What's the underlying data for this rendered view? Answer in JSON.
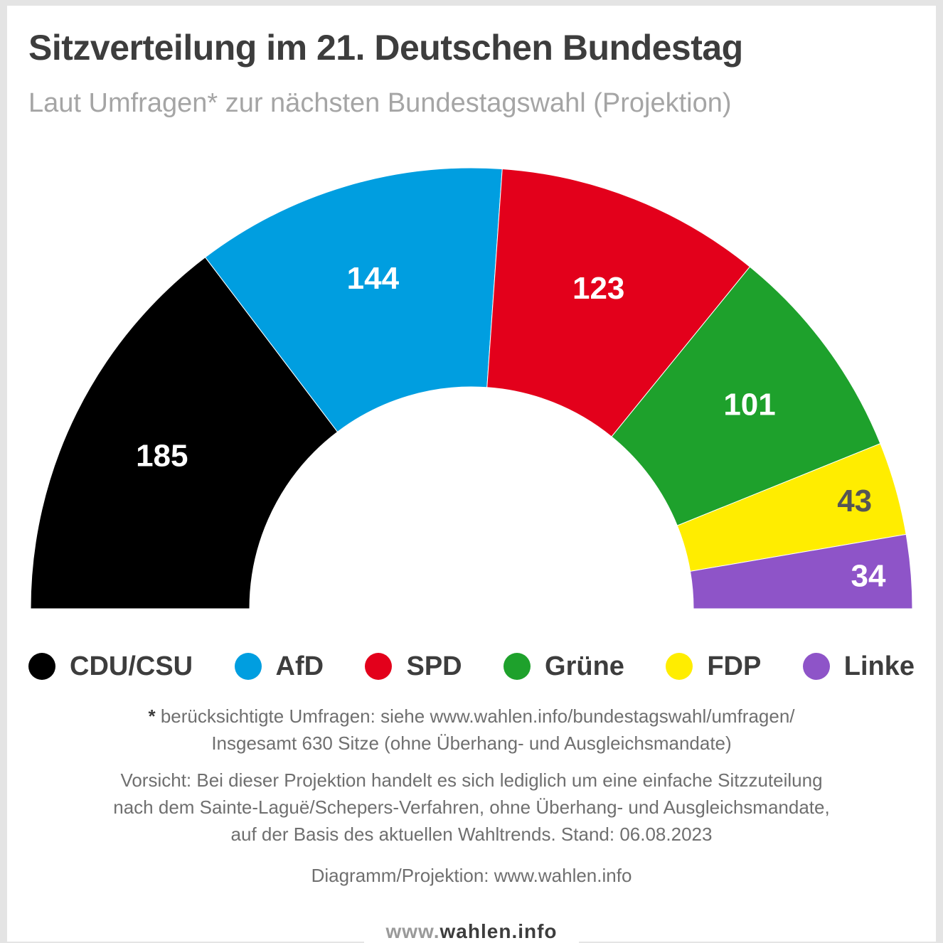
{
  "title": "Sitzverteilung im 21. Deutschen Bundestag",
  "subtitle": "Laut Umfragen* zur nächsten Bundestagswahl (Projektion)",
  "chart_data": {
    "type": "pie",
    "subtype": "hemicycle",
    "total": 630,
    "parties": [
      {
        "name": "CDU/CSU",
        "seats": 185,
        "color": "#000000",
        "label_color": "#ffffff"
      },
      {
        "name": "AfD",
        "seats": 144,
        "color": "#009ee0",
        "label_color": "#ffffff"
      },
      {
        "name": "SPD",
        "seats": 123,
        "color": "#e3001b",
        "label_color": "#ffffff"
      },
      {
        "name": "Grüne",
        "seats": 101,
        "color": "#1ea12c",
        "label_color": "#ffffff"
      },
      {
        "name": "FDP",
        "seats": 43,
        "color": "#ffed00",
        "label_color": "#555555"
      },
      {
        "name": "Linke",
        "seats": 34,
        "color": "#8e54c8",
        "label_color": "#ffffff"
      }
    ]
  },
  "notes": {
    "asterisk": "*",
    "line1": " berücksichtigte Umfragen: siehe www.wahlen.info/bundestagswahl/umfragen/",
    "line2": "Insgesamt 630 Sitze (ohne Überhang- und Ausgleichsmandate)",
    "line3": "Vorsicht: Bei dieser Projektion handelt es sich lediglich um eine einfache Sitzzuteilung",
    "line4": "nach dem Sainte-Laguë/Schepers-Verfahren, ohne Überhang- und Ausgleichsmandate,",
    "line5": "auf der Basis des aktuellen Wahltrends. Stand: 06.08.2023",
    "line6": "Diagramm/Projektion: www.wahlen.info"
  },
  "footer": {
    "prefix": "www.",
    "domain": "wahlen.info"
  }
}
